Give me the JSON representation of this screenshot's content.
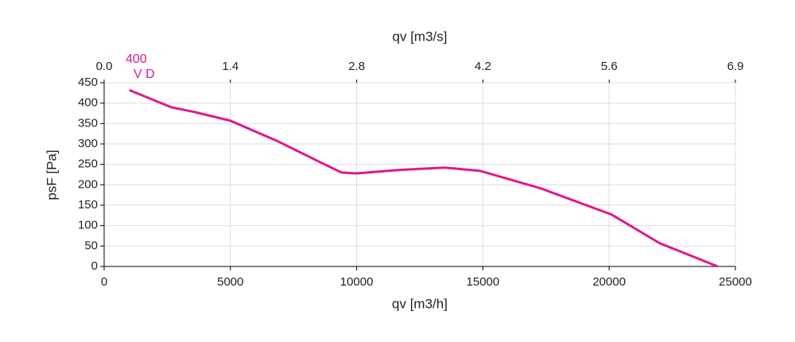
{
  "chart_data": {
    "type": "line",
    "x_label": "qv [m3/h]",
    "x2_label": "qv [m3/s]",
    "y_label": "psF [Pa]",
    "curve_label": [
      "400",
      "V D"
    ],
    "series": [
      {
        "color": "#e0198a",
        "x": [
          1000,
          2650,
          3600,
          5000,
          6900,
          8500,
          9400,
          10000,
          11600,
          13500,
          14900,
          17300,
          20100,
          22000,
          24300
        ],
        "values": [
          432,
          390,
          378,
          357,
          306,
          257,
          230,
          228,
          236,
          242,
          234,
          191,
          127,
          57,
          0
        ]
      }
    ],
    "xlim": [
      0,
      25000
    ],
    "xticks": [
      0,
      5000,
      10000,
      15000,
      20000,
      25000
    ],
    "x2lim": [
      0,
      6.944
    ],
    "x2ticks": [
      {
        "value": 0,
        "label": "0.0"
      },
      {
        "value": 1.389,
        "label": "1.4"
      },
      {
        "value": 2.778,
        "label": "2.8"
      },
      {
        "value": 4.167,
        "label": "4.2"
      },
      {
        "value": 5.556,
        "label": "5.6"
      },
      {
        "value": 6.944,
        "label": "6.9"
      }
    ],
    "ylim": [
      0,
      450
    ],
    "yticks": [
      0,
      50,
      100,
      150,
      200,
      250,
      300,
      350,
      400,
      450
    ],
    "grid": true
  }
}
